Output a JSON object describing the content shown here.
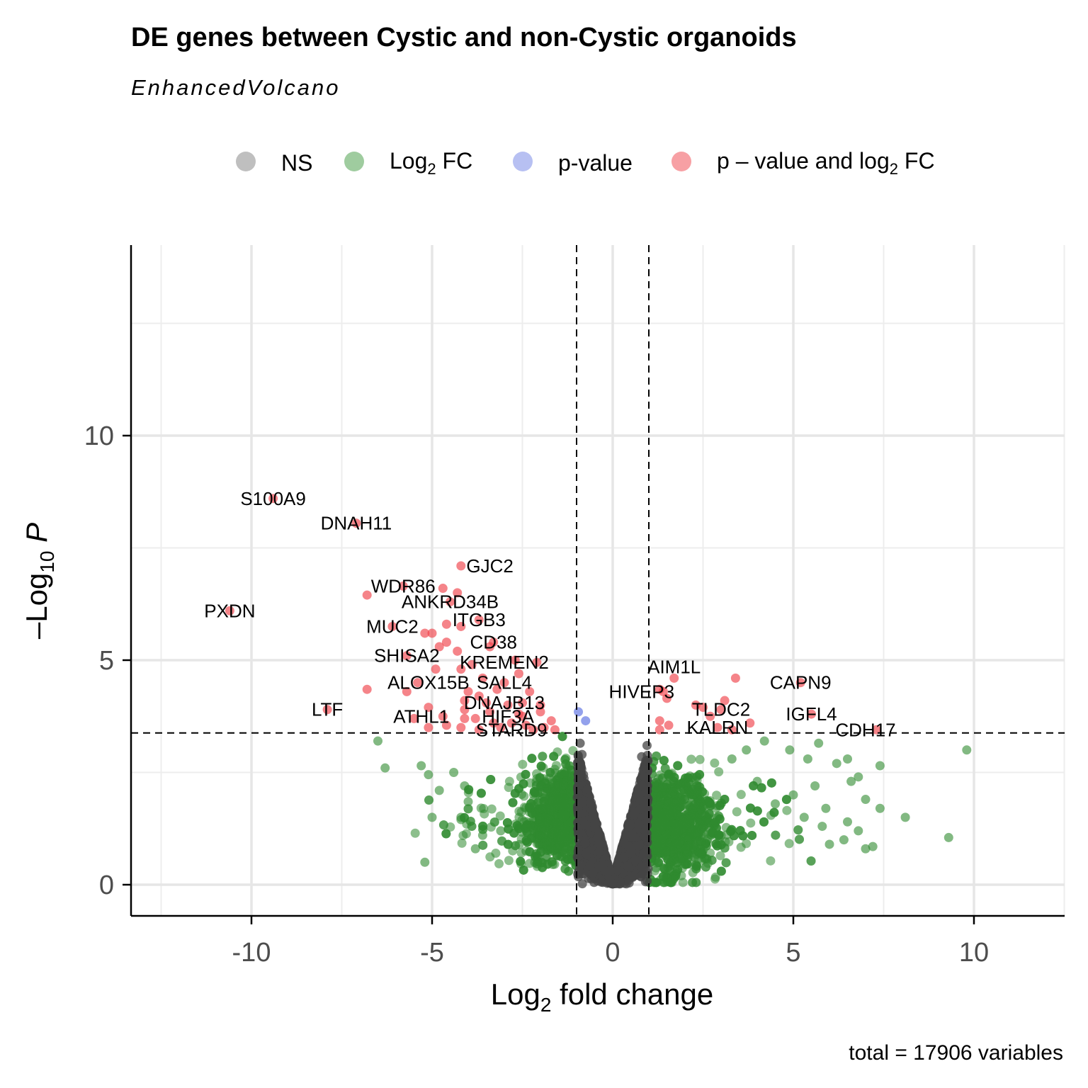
{
  "title": "DE genes between Cystic and non-Cystic organoids",
  "subtitle": "EnhancedVolcano",
  "caption": "total = 17906 variables",
  "legend": {
    "items": [
      {
        "label": "NS",
        "color": "#7f7f7f"
      },
      {
        "label": "Log",
        "sub": "2",
        "suffix": " FC",
        "color": "#3f9a3f"
      },
      {
        "label": "p-value",
        "color": "#6f82e6"
      },
      {
        "label": "p – value and log",
        "sub": "2",
        "suffix": " FC",
        "color": "#f0424a"
      }
    ]
  },
  "axes": {
    "x_title": "Log",
    "x_title_sub": "2",
    "x_title_suffix": " fold change",
    "y_title": "–Log",
    "y_title_sub": "10",
    "y_title_suffix": " P",
    "x_ticks": [
      "-10",
      "-5",
      "0",
      "5",
      "10"
    ],
    "y_ticks": [
      "0",
      "5",
      "10"
    ]
  },
  "chart_data": {
    "type": "scatter",
    "xlim": [
      -13,
      12.9
    ],
    "ylim": [
      -0.7,
      14.3
    ],
    "x_ticks": [
      -10,
      -5,
      0,
      5,
      10
    ],
    "y_ticks": [
      0,
      5,
      10
    ],
    "grid": true,
    "legend_position": "top",
    "cutoffs": {
      "log2fc": [
        -1,
        1
      ],
      "neg_log10_p": 3.38
    },
    "colors": {
      "NS": "#444444",
      "log2fc": "#2f8a2f",
      "pvalue": "#6f82e6",
      "both": "#f0424a"
    },
    "labeled_genes": [
      {
        "gene": "S100A9",
        "x": -9.4,
        "y": 8.6,
        "label_dx": 0.0,
        "label_dy": 0.0
      },
      {
        "gene": "DNAH11",
        "x": -7.1,
        "y": 8.05,
        "label_dx": 0.0,
        "label_dy": 0.0
      },
      {
        "gene": "GJC2",
        "x": -4.2,
        "y": 7.1,
        "label_dx": 0.8,
        "label_dy": 0.0
      },
      {
        "gene": "WDR86",
        "x": -5.8,
        "y": 6.65,
        "label_dx": 0.0,
        "label_dy": 0.0
      },
      {
        "gene": "ANKRD34B",
        "x": -4.5,
        "y": 6.3,
        "label_dx": 0.0,
        "label_dy": 0.0
      },
      {
        "gene": "PXDN",
        "x": -10.6,
        "y": 6.1,
        "label_dx": 0.0,
        "label_dy": 0.0
      },
      {
        "gene": "ITGB3",
        "x": -3.7,
        "y": 5.9,
        "label_dx": 0.0,
        "label_dy": 0.0
      },
      {
        "gene": "MUC2",
        "x": -6.1,
        "y": 5.75,
        "label_dx": 0.0,
        "label_dy": 0.0
      },
      {
        "gene": "CD38",
        "x": -3.3,
        "y": 5.4,
        "label_dx": 0.0,
        "label_dy": 0.0
      },
      {
        "gene": "SHISA2",
        "x": -5.7,
        "y": 5.1,
        "label_dx": 0.0,
        "label_dy": 0.0
      },
      {
        "gene": "KREMEN2",
        "x": -2.1,
        "y": 4.95,
        "label_dx": -0.9,
        "label_dy": 0.0
      },
      {
        "gene": "ALOX15B",
        "x": -5.4,
        "y": 4.5,
        "label_dx": 0.3,
        "label_dy": 0.0
      },
      {
        "gene": "SALL4",
        "x": -3.0,
        "y": 4.5,
        "label_dx": 0.0,
        "label_dy": 0.0
      },
      {
        "gene": "DNAJB13",
        "x": -2.5,
        "y": 4.05,
        "label_dx": -0.5,
        "label_dy": 0.0
      },
      {
        "gene": "LTF",
        "x": -7.9,
        "y": 3.9,
        "label_dx": 0.0,
        "label_dy": 0.0
      },
      {
        "gene": "ATHL1",
        "x": -4.7,
        "y": 3.75,
        "label_dx": -0.6,
        "label_dy": 0.0
      },
      {
        "gene": "HIF3A",
        "x": -2.5,
        "y": 3.75,
        "label_dx": -0.4,
        "label_dy": 0.0
      },
      {
        "gene": "STARD9",
        "x": -2.2,
        "y": 3.45,
        "label_dx": -0.6,
        "label_dy": 0.0
      },
      {
        "gene": "AIM1L",
        "x": 1.7,
        "y": 4.6,
        "label_dx": 0.0,
        "label_dy": 0.25
      },
      {
        "gene": "HIVEP3",
        "x": 1.4,
        "y": 4.3,
        "label_dx": -0.6,
        "label_dy": 0.0
      },
      {
        "gene": "CAPN9",
        "x": 5.2,
        "y": 4.5,
        "label_dx": 0.0,
        "label_dy": 0.0
      },
      {
        "gene": "TLDC2",
        "x": 3.0,
        "y": 3.9,
        "label_dx": 0.0,
        "label_dy": 0.0
      },
      {
        "gene": "IGFL4",
        "x": 5.5,
        "y": 3.8,
        "label_dx": 0.0,
        "label_dy": 0.0
      },
      {
        "gene": "KALRN",
        "x": 2.9,
        "y": 3.5,
        "label_dx": 0.0,
        "label_dy": 0.0
      },
      {
        "gene": "CDH17",
        "x": 7.3,
        "y": 3.45,
        "label_dx": -0.3,
        "label_dy": 0.0
      }
    ],
    "extra_significant_points": [
      {
        "x": -6.8,
        "y": 6.45
      },
      {
        "x": -4.7,
        "y": 6.6
      },
      {
        "x": -4.3,
        "y": 6.5
      },
      {
        "x": -4.6,
        "y": 5.8
      },
      {
        "x": -4.2,
        "y": 5.75
      },
      {
        "x": -5.0,
        "y": 5.6
      },
      {
        "x": -5.2,
        "y": 5.6
      },
      {
        "x": -4.6,
        "y": 5.4
      },
      {
        "x": -4.8,
        "y": 5.3
      },
      {
        "x": -4.3,
        "y": 5.2
      },
      {
        "x": -3.4,
        "y": 5.3
      },
      {
        "x": -2.7,
        "y": 5.0
      },
      {
        "x": -3.9,
        "y": 4.9
      },
      {
        "x": -4.2,
        "y": 4.8
      },
      {
        "x": -3.6,
        "y": 4.6
      },
      {
        "x": -2.6,
        "y": 4.7
      },
      {
        "x": -4.9,
        "y": 4.8
      },
      {
        "x": -6.8,
        "y": 4.35
      },
      {
        "x": -5.7,
        "y": 4.3
      },
      {
        "x": -4.0,
        "y": 4.3
      },
      {
        "x": -3.7,
        "y": 4.2
      },
      {
        "x": -3.2,
        "y": 4.35
      },
      {
        "x": -2.3,
        "y": 4.3
      },
      {
        "x": -4.1,
        "y": 4.1
      },
      {
        "x": -3.5,
        "y": 4.05
      },
      {
        "x": -2.9,
        "y": 4.0
      },
      {
        "x": -2.0,
        "y": 4.0
      },
      {
        "x": -4.1,
        "y": 3.9
      },
      {
        "x": -3.4,
        "y": 3.85
      },
      {
        "x": -2.0,
        "y": 3.85
      },
      {
        "x": -5.1,
        "y": 3.95
      },
      {
        "x": -4.1,
        "y": 3.7
      },
      {
        "x": -3.8,
        "y": 3.7
      },
      {
        "x": -2.8,
        "y": 3.6
      },
      {
        "x": -1.7,
        "y": 3.65
      },
      {
        "x": -5.5,
        "y": 3.7
      },
      {
        "x": -5.1,
        "y": 3.5
      },
      {
        "x": -4.6,
        "y": 3.55
      },
      {
        "x": -4.2,
        "y": 3.5
      },
      {
        "x": -3.7,
        "y": 3.45
      },
      {
        "x": -3.1,
        "y": 3.5
      },
      {
        "x": -2.4,
        "y": 3.55
      },
      {
        "x": -1.9,
        "y": 3.5
      },
      {
        "x": -1.6,
        "y": 3.45
      },
      {
        "x": -3.3,
        "y": 3.6
      },
      {
        "x": -2.6,
        "y": 3.8
      },
      {
        "x": 1.3,
        "y": 4.35
      },
      {
        "x": 1.5,
        "y": 4.15
      },
      {
        "x": 2.3,
        "y": 4.0
      },
      {
        "x": 2.5,
        "y": 3.95
      },
      {
        "x": 3.1,
        "y": 4.1
      },
      {
        "x": 3.4,
        "y": 4.6
      },
      {
        "x": 2.7,
        "y": 3.75
      },
      {
        "x": 1.3,
        "y": 3.65
      },
      {
        "x": 1.55,
        "y": 3.55
      },
      {
        "x": 1.3,
        "y": 3.45
      },
      {
        "x": 3.8,
        "y": 3.6
      },
      {
        "x": 3.3,
        "y": 3.45
      }
    ],
    "pvalue_only_points": [
      {
        "x": -0.95,
        "y": 3.85
      },
      {
        "x": -0.75,
        "y": 3.65
      }
    ],
    "background_points": "Approximately 17900 further genes: grey (NS) cluster forming a V shape within |log2FC| < 1 below -log10P 3.38; green (log2FC only) clouds on both sides from x = -6.7 to 9.8 up to about -log10P 3.3"
  }
}
